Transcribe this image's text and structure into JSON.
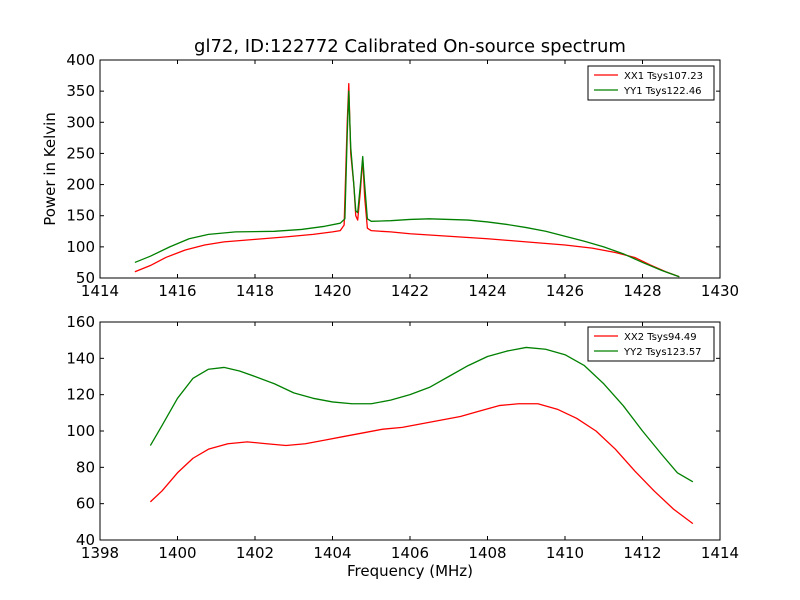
{
  "chart_data": [
    {
      "type": "line",
      "title": "gl72, ID:122772 Calibrated On-source spectrum",
      "xlabel": "",
      "ylabel": "Power in Kelvin",
      "xlim": [
        1414,
        1430
      ],
      "ylim": [
        50,
        400
      ],
      "x_ticks": [
        1414,
        1416,
        1418,
        1420,
        1422,
        1424,
        1426,
        1428,
        1430
      ],
      "y_ticks": [
        50,
        100,
        150,
        200,
        250,
        300,
        350,
        400
      ],
      "x_tick_labels": [
        "1414",
        "1416",
        "1418",
        "1420",
        "1422",
        "1424",
        "1426",
        "1428",
        "1430"
      ],
      "y_tick_labels": [
        "50",
        "100",
        "150",
        "200",
        "250",
        "300",
        "350",
        "400"
      ],
      "grid": false,
      "legend_position": "top-right",
      "series": [
        {
          "name": "XX1 Tsys107.23",
          "color": "#ff0000",
          "points": [
            [
              1414.9,
              60
            ],
            [
              1415.3,
              70
            ],
            [
              1415.7,
              83
            ],
            [
              1416.2,
              95
            ],
            [
              1416.7,
              103
            ],
            [
              1417.2,
              108
            ],
            [
              1418.0,
              112
            ],
            [
              1418.8,
              116
            ],
            [
              1419.5,
              120
            ],
            [
              1420.0,
              124
            ],
            [
              1420.2,
              126
            ],
            [
              1420.3,
              135
            ],
            [
              1420.38,
              300
            ],
            [
              1420.42,
              362
            ],
            [
              1420.47,
              250
            ],
            [
              1420.55,
              200
            ],
            [
              1420.6,
              150
            ],
            [
              1420.65,
              143
            ],
            [
              1420.72,
              190
            ],
            [
              1420.78,
              242
            ],
            [
              1420.83,
              180
            ],
            [
              1420.9,
              130
            ],
            [
              1421.0,
              126
            ],
            [
              1421.5,
              124
            ],
            [
              1422.0,
              121
            ],
            [
              1423.0,
              117
            ],
            [
              1424.0,
              113
            ],
            [
              1425.0,
              108
            ],
            [
              1426.0,
              103
            ],
            [
              1426.7,
              98
            ],
            [
              1427.3,
              91
            ],
            [
              1427.8,
              83
            ],
            [
              1428.2,
              71
            ],
            [
              1428.6,
              60
            ],
            [
              1428.95,
              52
            ]
          ]
        },
        {
          "name": "YY1 Tsys122.46",
          "color": "#008000",
          "points": [
            [
              1414.9,
              75
            ],
            [
              1415.3,
              85
            ],
            [
              1415.8,
              100
            ],
            [
              1416.3,
              113
            ],
            [
              1416.8,
              120
            ],
            [
              1417.5,
              124
            ],
            [
              1418.5,
              125
            ],
            [
              1419.2,
              128
            ],
            [
              1419.8,
              133
            ],
            [
              1420.2,
              138
            ],
            [
              1420.32,
              145
            ],
            [
              1420.38,
              280
            ],
            [
              1420.42,
              350
            ],
            [
              1420.47,
              260
            ],
            [
              1420.55,
              200
            ],
            [
              1420.6,
              158
            ],
            [
              1420.65,
              155
            ],
            [
              1420.72,
              200
            ],
            [
              1420.78,
              245
            ],
            [
              1420.83,
              200
            ],
            [
              1420.9,
              145
            ],
            [
              1421.0,
              141
            ],
            [
              1421.5,
              142
            ],
            [
              1422.0,
              144
            ],
            [
              1422.5,
              145
            ],
            [
              1423.0,
              144
            ],
            [
              1423.5,
              143
            ],
            [
              1424.0,
              140
            ],
            [
              1424.5,
              136
            ],
            [
              1425.0,
              131
            ],
            [
              1425.5,
              125
            ],
            [
              1426.0,
              117
            ],
            [
              1426.5,
              109
            ],
            [
              1427.0,
              100
            ],
            [
              1427.5,
              89
            ],
            [
              1428.0,
              75
            ],
            [
              1428.5,
              62
            ],
            [
              1428.95,
              52
            ]
          ]
        }
      ]
    },
    {
      "type": "line",
      "title": "",
      "xlabel": "Frequency (MHz)",
      "ylabel": "",
      "xlim": [
        1398,
        1414
      ],
      "ylim": [
        40,
        160
      ],
      "x_ticks": [
        1398,
        1400,
        1402,
        1404,
        1406,
        1408,
        1410,
        1412,
        1414
      ],
      "y_ticks": [
        40,
        60,
        80,
        100,
        120,
        140,
        160
      ],
      "x_tick_labels": [
        "1398",
        "1400",
        "1402",
        "1404",
        "1406",
        "1408",
        "1410",
        "1412",
        "1414"
      ],
      "y_tick_labels": [
        "40",
        "60",
        "80",
        "100",
        "120",
        "140",
        "160"
      ],
      "grid": false,
      "legend_position": "top-right",
      "series": [
        {
          "name": "XX2 Tsys94.49",
          "color": "#ff0000",
          "points": [
            [
              1399.3,
              61
            ],
            [
              1399.6,
              67
            ],
            [
              1400.0,
              77
            ],
            [
              1400.4,
              85
            ],
            [
              1400.8,
              90
            ],
            [
              1401.3,
              93
            ],
            [
              1401.8,
              94
            ],
            [
              1402.3,
              93
            ],
            [
              1402.8,
              92
            ],
            [
              1403.3,
              93
            ],
            [
              1403.8,
              95
            ],
            [
              1404.3,
              97
            ],
            [
              1404.8,
              99
            ],
            [
              1405.3,
              101
            ],
            [
              1405.8,
              102
            ],
            [
              1406.3,
              104
            ],
            [
              1406.8,
              106
            ],
            [
              1407.3,
              108
            ],
            [
              1407.8,
              111
            ],
            [
              1408.3,
              114
            ],
            [
              1408.8,
              115
            ],
            [
              1409.3,
              115
            ],
            [
              1409.8,
              112
            ],
            [
              1410.3,
              107
            ],
            [
              1410.8,
              100
            ],
            [
              1411.3,
              90
            ],
            [
              1411.8,
              78
            ],
            [
              1412.3,
              67
            ],
            [
              1412.8,
              57
            ],
            [
              1413.3,
              49
            ]
          ]
        },
        {
          "name": "YY2 Tsys123.57",
          "color": "#008000",
          "points": [
            [
              1399.3,
              92
            ],
            [
              1399.6,
              103
            ],
            [
              1400.0,
              118
            ],
            [
              1400.4,
              129
            ],
            [
              1400.8,
              134
            ],
            [
              1401.2,
              135
            ],
            [
              1401.6,
              133
            ],
            [
              1402.0,
              130
            ],
            [
              1402.5,
              126
            ],
            [
              1403.0,
              121
            ],
            [
              1403.5,
              118
            ],
            [
              1404.0,
              116
            ],
            [
              1404.5,
              115
            ],
            [
              1405.0,
              115
            ],
            [
              1405.5,
              117
            ],
            [
              1406.0,
              120
            ],
            [
              1406.5,
              124
            ],
            [
              1407.0,
              130
            ],
            [
              1407.5,
              136
            ],
            [
              1408.0,
              141
            ],
            [
              1408.5,
              144
            ],
            [
              1409.0,
              146
            ],
            [
              1409.5,
              145
            ],
            [
              1410.0,
              142
            ],
            [
              1410.5,
              136
            ],
            [
              1411.0,
              126
            ],
            [
              1411.5,
              114
            ],
            [
              1412.0,
              100
            ],
            [
              1412.5,
              87
            ],
            [
              1412.9,
              77
            ],
            [
              1413.3,
              72
            ]
          ]
        }
      ]
    }
  ]
}
